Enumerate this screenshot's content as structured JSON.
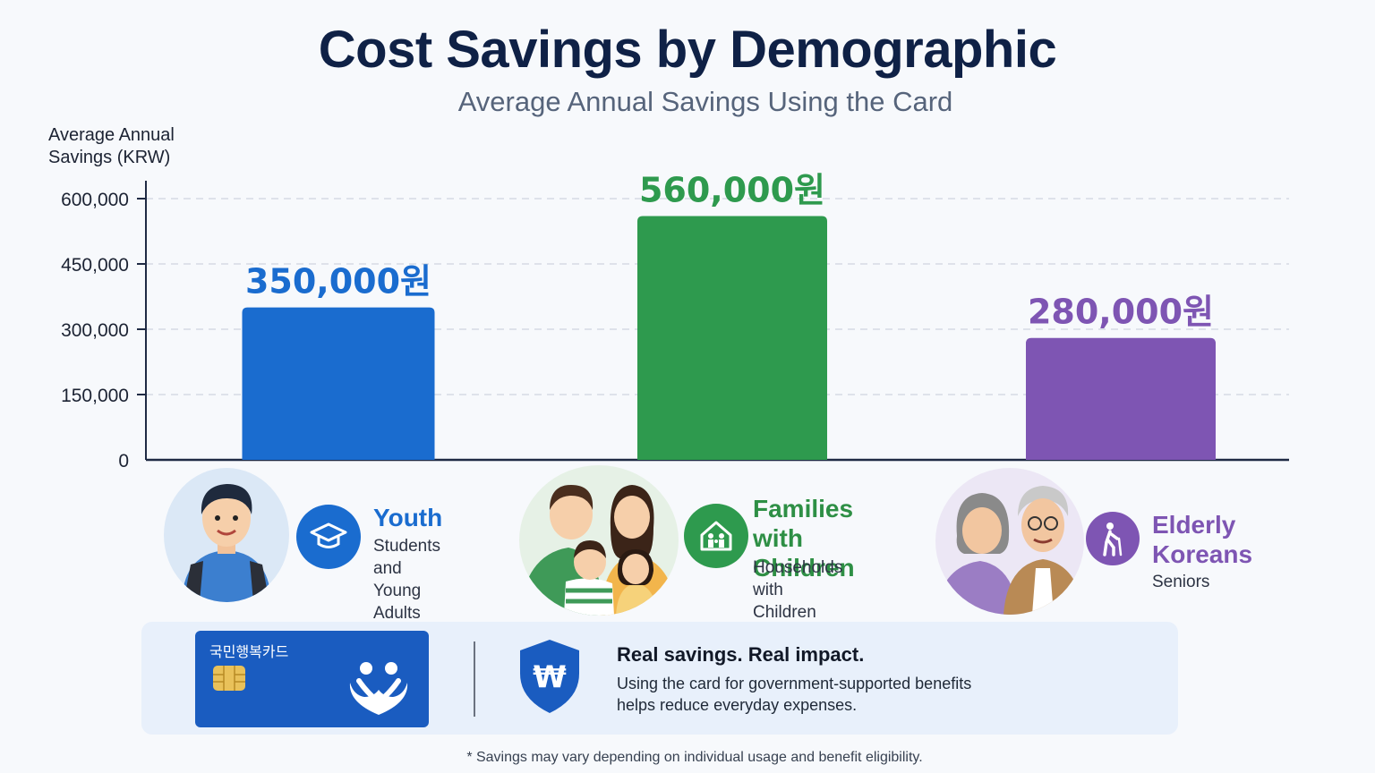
{
  "title": "Cost Savings by Demographic",
  "subtitle": "Average Annual Savings Using the Card",
  "chart_data": {
    "type": "bar",
    "title": "Cost Savings by Demographic",
    "subtitle": "Average Annual Savings Using the Card",
    "ylabel": "Average Annual Savings (KRW)",
    "xlabel": "",
    "ylim": [
      0,
      600000
    ],
    "yticks": [
      "0",
      "150,000",
      "300,000",
      "450,000",
      "600,000"
    ],
    "ytick_values": [
      0,
      150000,
      300000,
      450000,
      600000
    ],
    "categories": [
      "Youth",
      "Families with Children",
      "Elderly Koreans"
    ],
    "values": [
      350000,
      560000,
      280000
    ],
    "data_labels": [
      "350,000원",
      "560,000원",
      "280,000원"
    ],
    "colors": [
      "#1a6ccf",
      "#2e9a4e",
      "#7e55b3"
    ],
    "grid": "horizontal dashed"
  },
  "ylabel_lines": [
    "Average Annual",
    "Savings (KRW)"
  ],
  "categories": [
    {
      "name": "youth",
      "title_lines": [
        "Youth"
      ],
      "sub_lines": [
        "Students and",
        "Young Adults"
      ],
      "color": "#1a6ccf",
      "icon": "graduation-cap-icon"
    },
    {
      "name": "families",
      "title_lines": [
        "Families with",
        "Children"
      ],
      "sub_lines": [
        "Households with",
        "Children"
      ],
      "color": "#2e9a4e",
      "icon": "house-family-icon"
    },
    {
      "name": "elderly",
      "title_lines": [
        "Elderly",
        "Koreans"
      ],
      "sub_lines": [
        "Seniors"
      ],
      "color": "#7e55b3",
      "icon": "senior-walking-icon"
    }
  ],
  "card": {
    "name": "국민행복카드"
  },
  "message": {
    "title": "Real savings. Real impact.",
    "body_lines": [
      "Using the card for government-supported benefits",
      "helps reduce everyday expenses."
    ]
  },
  "footnote": "* Savings may vary depending on individual usage and benefit eligibility."
}
